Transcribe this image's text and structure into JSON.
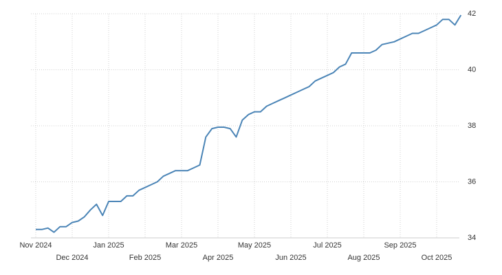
{
  "chart_data": {
    "type": "line",
    "categories": [
      "Nov 2024",
      null,
      null,
      null,
      null,
      null,
      "Dec 2024",
      null,
      null,
      null,
      null,
      null,
      "Jan 2025",
      null,
      null,
      null,
      null,
      null,
      "Feb 2025",
      null,
      null,
      null,
      null,
      null,
      "Mar 2025",
      null,
      null,
      null,
      null,
      null,
      "Apr 2025",
      null,
      null,
      null,
      null,
      null,
      "May 2025",
      null,
      null,
      null,
      null,
      null,
      "Jun 2025",
      null,
      null,
      null,
      null,
      null,
      "Jul 2025",
      null,
      null,
      null,
      null,
      null,
      "Aug 2025",
      null,
      null,
      null,
      null,
      null,
      "Sep 2025",
      null,
      null,
      null,
      null,
      null,
      "Oct 2025",
      null,
      null,
      null,
      null
    ],
    "series": [
      {
        "color": "#4a84b6",
        "values": [
          34.3,
          34.3,
          34.35,
          34.2,
          34.4,
          34.4,
          34.55,
          34.6,
          34.75,
          35.0,
          35.2,
          34.8,
          35.3,
          35.3,
          35.3,
          35.5,
          35.5,
          35.7,
          35.8,
          35.9,
          36.0,
          36.2,
          36.3,
          36.4,
          36.4,
          36.4,
          36.5,
          36.6,
          37.6,
          37.9,
          37.95,
          37.95,
          37.9,
          37.6,
          38.2,
          38.4,
          38.5,
          38.5,
          38.7,
          38.8,
          38.9,
          39.0,
          39.1,
          39.2,
          39.3,
          39.4,
          39.6,
          39.7,
          39.8,
          39.9,
          40.1,
          40.2,
          40.6,
          40.6,
          40.6,
          40.6,
          40.7,
          40.9,
          40.95,
          41.0,
          41.1,
          41.2,
          41.3,
          41.3,
          41.4,
          41.5,
          41.6,
          41.8,
          41.8,
          41.6,
          41.95
        ]
      }
    ],
    "ylim": [
      34,
      42
    ],
    "yticks": [
      34,
      36,
      38,
      40,
      42
    ],
    "grid": true
  }
}
